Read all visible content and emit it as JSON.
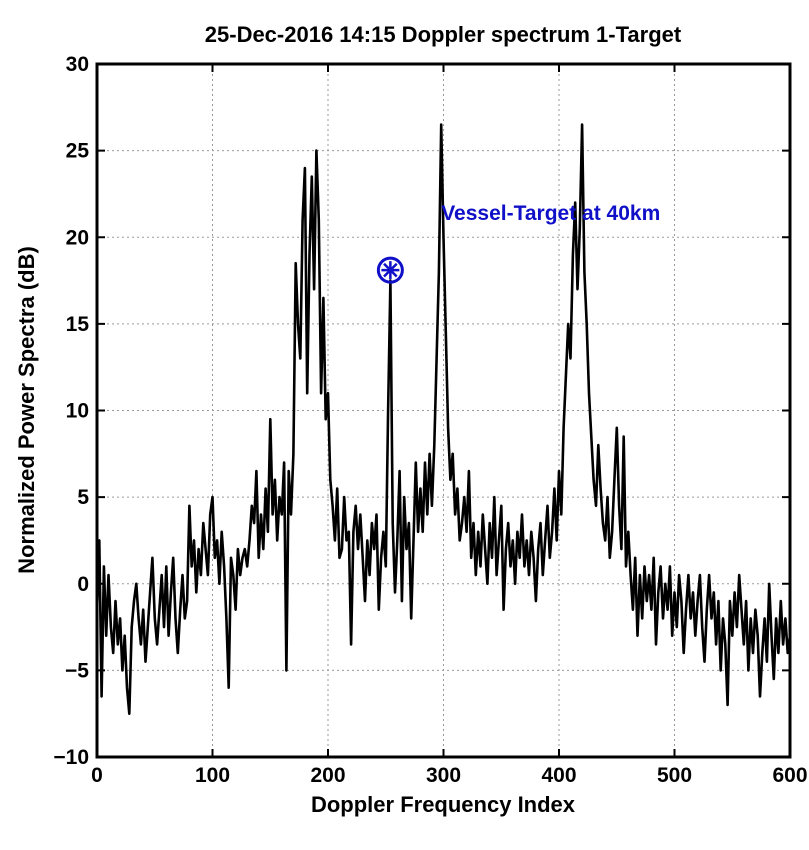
{
  "chart_data": {
    "type": "line",
    "title": "25-Dec-2016 14:15  Doppler spectrum 1-Target",
    "xlabel": "Doppler Frequency Index",
    "ylabel": "Normalized Power Spectra (dB)",
    "xlim": [
      0,
      600
    ],
    "ylim": [
      -10,
      30
    ],
    "xticks": [
      0,
      100,
      200,
      300,
      400,
      500,
      600
    ],
    "yticks": [
      -10,
      -5,
      0,
      5,
      10,
      15,
      20,
      25,
      30
    ],
    "grid": true,
    "line_color": "#000000",
    "series": [
      {
        "points": [
          [
            0,
            -1.5
          ],
          [
            2,
            2.5
          ],
          [
            4,
            -6.5
          ],
          [
            6,
            1.0
          ],
          [
            8,
            -3.0
          ],
          [
            10,
            0.5
          ],
          [
            12,
            -2.5
          ],
          [
            14,
            -4.0
          ],
          [
            16,
            -1.0
          ],
          [
            18,
            -3.5
          ],
          [
            20,
            -2.0
          ],
          [
            22,
            -5.0
          ],
          [
            24,
            -3.0
          ],
          [
            26,
            -6.0
          ],
          [
            28,
            -7.5
          ],
          [
            30,
            -2.5
          ],
          [
            32,
            -1.0
          ],
          [
            34,
            0.0
          ],
          [
            36,
            -2.0
          ],
          [
            38,
            -3.5
          ],
          [
            40,
            -1.5
          ],
          [
            42,
            -4.5
          ],
          [
            44,
            -2.5
          ],
          [
            46,
            -0.5
          ],
          [
            48,
            1.5
          ],
          [
            50,
            -2.0
          ],
          [
            52,
            -3.5
          ],
          [
            54,
            -1.5
          ],
          [
            56,
            0.5
          ],
          [
            58,
            -2.5
          ],
          [
            60,
            1.0
          ],
          [
            62,
            -3.0
          ],
          [
            64,
            -0.5
          ],
          [
            66,
            1.5
          ],
          [
            68,
            -2.0
          ],
          [
            70,
            -4.0
          ],
          [
            72,
            -1.5
          ],
          [
            74,
            0.5
          ],
          [
            76,
            -2.0
          ],
          [
            78,
            -1.0
          ],
          [
            80,
            4.5
          ],
          [
            82,
            1.0
          ],
          [
            84,
            2.5
          ],
          [
            86,
            -0.5
          ],
          [
            88,
            2.0
          ],
          [
            90,
            0.5
          ],
          [
            92,
            3.5
          ],
          [
            94,
            2.0
          ],
          [
            96,
            0.5
          ],
          [
            98,
            4.0
          ],
          [
            100,
            5.0
          ],
          [
            102,
            1.5
          ],
          [
            104,
            2.5
          ],
          [
            106,
            0.0
          ],
          [
            108,
            3.0
          ],
          [
            110,
            1.0
          ],
          [
            112,
            -2.0
          ],
          [
            114,
            -6.0
          ],
          [
            116,
            1.5
          ],
          [
            118,
            0.5
          ],
          [
            120,
            -1.5
          ],
          [
            122,
            2.0
          ],
          [
            124,
            0.5
          ],
          [
            126,
            1.5
          ],
          [
            128,
            2.0
          ],
          [
            130,
            1.0
          ],
          [
            132,
            2.5
          ],
          [
            134,
            4.5
          ],
          [
            136,
            3.5
          ],
          [
            138,
            6.5
          ],
          [
            140,
            1.5
          ],
          [
            142,
            4.0
          ],
          [
            144,
            2.0
          ],
          [
            146,
            5.5
          ],
          [
            148,
            3.0
          ],
          [
            150,
            9.5
          ],
          [
            152,
            4.0
          ],
          [
            154,
            6.0
          ],
          [
            156,
            2.5
          ],
          [
            158,
            5.0
          ],
          [
            160,
            4.0
          ],
          [
            162,
            7.0
          ],
          [
            164,
            -5.0
          ],
          [
            166,
            6.5
          ],
          [
            168,
            4.0
          ],
          [
            170,
            7.5
          ],
          [
            172,
            18.5
          ],
          [
            174,
            15.0
          ],
          [
            176,
            13.0
          ],
          [
            178,
            21.0
          ],
          [
            180,
            24.0
          ],
          [
            182,
            11.0
          ],
          [
            184,
            19.0
          ],
          [
            186,
            23.5
          ],
          [
            188,
            17.0
          ],
          [
            190,
            25.0
          ],
          [
            192,
            21.0
          ],
          [
            194,
            11.0
          ],
          [
            196,
            16.5
          ],
          [
            198,
            9.5
          ],
          [
            200,
            11.0
          ],
          [
            202,
            6.0
          ],
          [
            204,
            4.5
          ],
          [
            206,
            2.5
          ],
          [
            208,
            5.5
          ],
          [
            210,
            1.5
          ],
          [
            212,
            2.0
          ],
          [
            214,
            5.0
          ],
          [
            216,
            2.5
          ],
          [
            218,
            3.0
          ],
          [
            220,
            -3.5
          ],
          [
            222,
            3.0
          ],
          [
            224,
            4.5
          ],
          [
            226,
            2.0
          ],
          [
            228,
            4.0
          ],
          [
            230,
            1.5
          ],
          [
            232,
            -1.0
          ],
          [
            234,
            2.5
          ],
          [
            236,
            0.5
          ],
          [
            238,
            3.5
          ],
          [
            240,
            2.0
          ],
          [
            242,
            4.0
          ],
          [
            244,
            -1.5
          ],
          [
            246,
            1.5
          ],
          [
            248,
            3.0
          ],
          [
            250,
            1.0
          ],
          [
            252,
            10.0
          ],
          [
            254,
            17.5
          ],
          [
            256,
            3.5
          ],
          [
            258,
            -0.5
          ],
          [
            260,
            2.5
          ],
          [
            262,
            6.5
          ],
          [
            264,
            -1.0
          ],
          [
            266,
            5.0
          ],
          [
            268,
            2.0
          ],
          [
            270,
            3.5
          ],
          [
            272,
            -2.0
          ],
          [
            274,
            2.5
          ],
          [
            276,
            7.0
          ],
          [
            278,
            3.0
          ],
          [
            280,
            5.5
          ],
          [
            282,
            3.0
          ],
          [
            284,
            7.0
          ],
          [
            286,
            4.0
          ],
          [
            288,
            7.5
          ],
          [
            290,
            4.5
          ],
          [
            292,
            8.0
          ],
          [
            294,
            13.0
          ],
          [
            296,
            18.0
          ],
          [
            298,
            26.5
          ],
          [
            300,
            20.0
          ],
          [
            302,
            14.5
          ],
          [
            304,
            9.0
          ],
          [
            306,
            6.0
          ],
          [
            308,
            7.5
          ],
          [
            310,
            4.0
          ],
          [
            312,
            5.5
          ],
          [
            314,
            2.5
          ],
          [
            316,
            3.5
          ],
          [
            318,
            5.0
          ],
          [
            320,
            3.0
          ],
          [
            322,
            6.5
          ],
          [
            324,
            1.5
          ],
          [
            326,
            3.5
          ],
          [
            328,
            0.5
          ],
          [
            330,
            3.0
          ],
          [
            332,
            1.0
          ],
          [
            334,
            4.0
          ],
          [
            336,
            2.0
          ],
          [
            338,
            0.0
          ],
          [
            340,
            3.5
          ],
          [
            342,
            1.5
          ],
          [
            344,
            5.0
          ],
          [
            346,
            0.5
          ],
          [
            348,
            2.5
          ],
          [
            350,
            4.5
          ],
          [
            352,
            -1.5
          ],
          [
            354,
            2.0
          ],
          [
            356,
            3.5
          ],
          [
            358,
            1.0
          ],
          [
            360,
            2.5
          ],
          [
            362,
            0.0
          ],
          [
            364,
            3.0
          ],
          [
            366,
            1.5
          ],
          [
            368,
            4.0
          ],
          [
            370,
            1.0
          ],
          [
            372,
            2.5
          ],
          [
            374,
            0.5
          ],
          [
            376,
            3.0
          ],
          [
            378,
            1.5
          ],
          [
            380,
            -1.0
          ],
          [
            382,
            2.0
          ],
          [
            384,
            3.5
          ],
          [
            386,
            0.5
          ],
          [
            388,
            2.5
          ],
          [
            390,
            4.5
          ],
          [
            392,
            1.5
          ],
          [
            394,
            3.0
          ],
          [
            396,
            5.5
          ],
          [
            398,
            2.5
          ],
          [
            400,
            6.5
          ],
          [
            402,
            4.0
          ],
          [
            404,
            9.0
          ],
          [
            406,
            12.0
          ],
          [
            408,
            15.0
          ],
          [
            410,
            13.0
          ],
          [
            412,
            19.0
          ],
          [
            414,
            22.0
          ],
          [
            416,
            17.0
          ],
          [
            418,
            20.5
          ],
          [
            420,
            26.5
          ],
          [
            422,
            18.0
          ],
          [
            424,
            15.0
          ],
          [
            426,
            11.0
          ],
          [
            428,
            8.5
          ],
          [
            430,
            6.0
          ],
          [
            432,
            4.5
          ],
          [
            434,
            8.0
          ],
          [
            436,
            5.5
          ],
          [
            438,
            3.5
          ],
          [
            440,
            2.5
          ],
          [
            442,
            5.0
          ],
          [
            444,
            1.5
          ],
          [
            446,
            3.0
          ],
          [
            448,
            6.0
          ],
          [
            450,
            9.0
          ],
          [
            452,
            4.5
          ],
          [
            454,
            2.0
          ],
          [
            456,
            8.5
          ],
          [
            458,
            1.0
          ],
          [
            460,
            3.0
          ],
          [
            462,
            0.5
          ],
          [
            464,
            -1.5
          ],
          [
            466,
            1.5
          ],
          [
            468,
            -3.0
          ],
          [
            470,
            0.5
          ],
          [
            472,
            -2.0
          ],
          [
            474,
            1.0
          ],
          [
            476,
            -1.0
          ],
          [
            478,
            0.5
          ],
          [
            480,
            -1.5
          ],
          [
            482,
            1.5
          ],
          [
            484,
            -3.5
          ],
          [
            486,
            -0.5
          ],
          [
            488,
            1.0
          ],
          [
            490,
            -2.0
          ],
          [
            492,
            0.0
          ],
          [
            494,
            -1.5
          ],
          [
            496,
            1.0
          ],
          [
            498,
            -3.0
          ],
          [
            500,
            -0.5
          ],
          [
            502,
            -2.5
          ],
          [
            504,
            0.5
          ],
          [
            506,
            -1.0
          ],
          [
            508,
            -4.0
          ],
          [
            510,
            -1.5
          ],
          [
            512,
            0.5
          ],
          [
            514,
            -2.0
          ],
          [
            516,
            -0.5
          ],
          [
            518,
            -3.0
          ],
          [
            520,
            -1.0
          ],
          [
            522,
            0.5
          ],
          [
            524,
            -2.5
          ],
          [
            526,
            -4.5
          ],
          [
            528,
            -1.5
          ],
          [
            530,
            0.5
          ],
          [
            532,
            -2.0
          ],
          [
            534,
            -0.5
          ],
          [
            536,
            -3.5
          ],
          [
            538,
            -1.0
          ],
          [
            540,
            -5.0
          ],
          [
            542,
            -2.0
          ],
          [
            544,
            -3.5
          ],
          [
            546,
            -7.0
          ],
          [
            548,
            -1.0
          ],
          [
            550,
            -3.0
          ],
          [
            552,
            -0.5
          ],
          [
            554,
            -2.5
          ],
          [
            556,
            0.5
          ],
          [
            558,
            -1.5
          ],
          [
            560,
            -3.5
          ],
          [
            562,
            -1.0
          ],
          [
            564,
            -5.0
          ],
          [
            566,
            -2.0
          ],
          [
            568,
            -4.0
          ],
          [
            570,
            -1.5
          ],
          [
            572,
            -3.0
          ],
          [
            574,
            -6.5
          ],
          [
            576,
            -4.0
          ],
          [
            578,
            -2.0
          ],
          [
            580,
            -4.5
          ],
          [
            582,
            0.0
          ],
          [
            584,
            -3.0
          ],
          [
            586,
            -5.5
          ],
          [
            588,
            -2.0
          ],
          [
            590,
            -4.0
          ],
          [
            592,
            -1.0
          ],
          [
            594,
            -3.5
          ],
          [
            596,
            -2.0
          ],
          [
            598,
            -4.0
          ],
          [
            600,
            -3.0
          ]
        ]
      }
    ],
    "marker": {
      "x": 254,
      "y": 18.1,
      "symbol": "circled-asterisk",
      "color": "#1010c8"
    },
    "annotation": {
      "text": "Vessel-Target at 40km",
      "x": 298,
      "y": 21,
      "color": "#1010c8"
    }
  }
}
